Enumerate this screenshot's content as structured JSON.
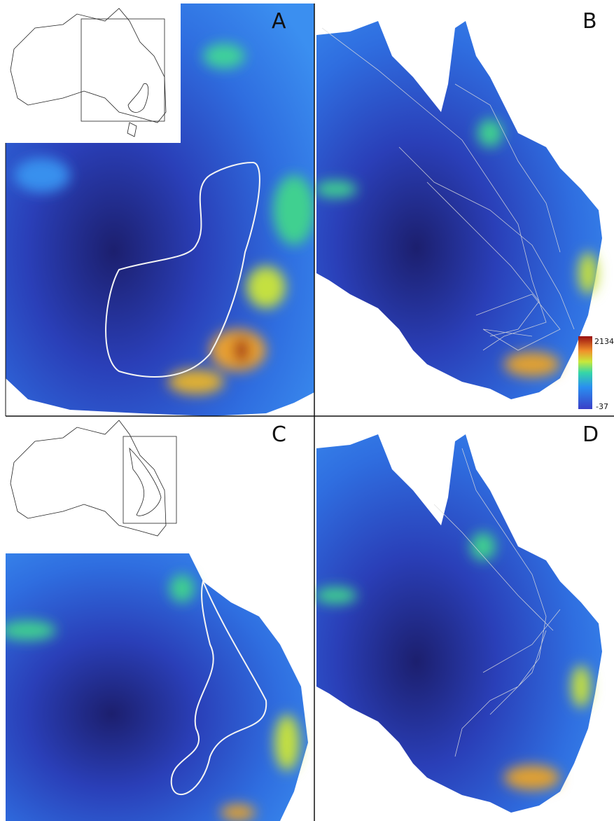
{
  "panels": {
    "a": {
      "label": "A"
    },
    "b": {
      "label": "B"
    },
    "c": {
      "label": "C"
    },
    "d": {
      "label": "D"
    }
  },
  "colorbar": {
    "max": 2134,
    "min": -37
  }
}
